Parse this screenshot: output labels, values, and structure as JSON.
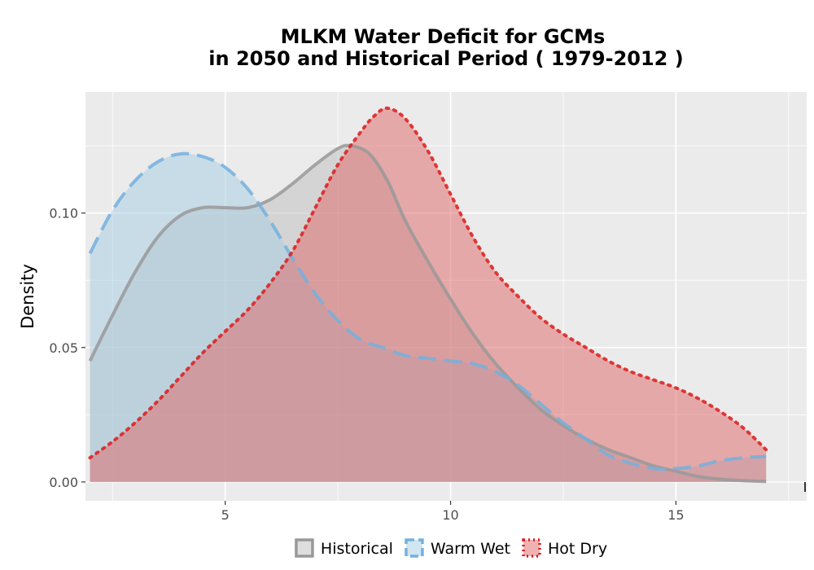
{
  "chart_data": {
    "type": "area",
    "title_lines": [
      "MLKM  Water Deficit for GCMs",
      "in 2050 and Historical Period ( 1979-2012 )"
    ],
    "xlabel": "",
    "ylabel": "Density",
    "xlim": [
      1.9,
      17.9
    ],
    "ylim": [
      -0.007,
      0.145
    ],
    "x_ticks": [
      5,
      10,
      15
    ],
    "x_tick_labels": [
      "5",
      "10",
      "15"
    ],
    "y_ticks": [
      0.0,
      0.05,
      0.1
    ],
    "y_tick_labels": [
      "0.00",
      "0.05",
      "0.10"
    ],
    "grid": true,
    "legend_position": "bottom",
    "series": [
      {
        "name": "Historical",
        "fill": "#bdbdbd",
        "line_color": "#999999",
        "line_style": "solid",
        "x": [
          2.0,
          2.5,
          3.0,
          3.5,
          4.0,
          4.5,
          5.0,
          5.5,
          6.0,
          6.5,
          7.0,
          7.5,
          7.8,
          8.2,
          8.6,
          9.0,
          9.5,
          10.0,
          10.5,
          11.0,
          11.5,
          12.0,
          12.5,
          13.0,
          13.5,
          14.0,
          14.5,
          15.0,
          15.5,
          16.0,
          16.5,
          17.0
        ],
        "values": [
          0.045,
          0.062,
          0.078,
          0.091,
          0.099,
          0.102,
          0.102,
          0.102,
          0.105,
          0.111,
          0.118,
          0.124,
          0.125,
          0.122,
          0.112,
          0.097,
          0.082,
          0.068,
          0.055,
          0.044,
          0.035,
          0.027,
          0.021,
          0.016,
          0.012,
          0.009,
          0.006,
          0.004,
          0.002,
          0.001,
          0.0005,
          0.0002
        ]
      },
      {
        "name": "Warm Wet",
        "fill": "#a6cee3",
        "line_color": "#74b0de",
        "line_style": "dashed",
        "x": [
          2.0,
          2.5,
          3.0,
          3.5,
          4.0,
          4.5,
          5.0,
          5.5,
          6.0,
          6.5,
          7.0,
          7.5,
          8.0,
          8.5,
          9.0,
          9.5,
          10.0,
          10.5,
          11.0,
          11.5,
          12.0,
          12.5,
          13.0,
          13.5,
          14.0,
          14.5,
          15.0,
          15.5,
          16.0,
          16.5,
          17.0
        ],
        "values": [
          0.085,
          0.101,
          0.112,
          0.119,
          0.122,
          0.121,
          0.117,
          0.109,
          0.097,
          0.083,
          0.07,
          0.06,
          0.053,
          0.05,
          0.047,
          0.046,
          0.045,
          0.044,
          0.041,
          0.036,
          0.029,
          0.022,
          0.016,
          0.01,
          0.007,
          0.005,
          0.005,
          0.006,
          0.008,
          0.009,
          0.0095
        ]
      },
      {
        "name": "Hot Dry",
        "fill": "#e06666",
        "line_color": "#dd1c1c",
        "line_style": "dotted",
        "x": [
          2.0,
          2.5,
          3.0,
          3.5,
          4.0,
          4.5,
          5.0,
          5.5,
          6.0,
          6.5,
          7.0,
          7.5,
          8.0,
          8.3,
          8.6,
          9.0,
          9.5,
          10.0,
          10.5,
          11.0,
          11.5,
          12.0,
          12.5,
          13.0,
          13.5,
          14.0,
          14.5,
          15.0,
          15.5,
          16.0,
          16.5,
          17.0
        ],
        "values": [
          0.009,
          0.015,
          0.022,
          0.03,
          0.039,
          0.048,
          0.056,
          0.064,
          0.074,
          0.086,
          0.102,
          0.118,
          0.13,
          0.136,
          0.139,
          0.135,
          0.123,
          0.107,
          0.091,
          0.078,
          0.069,
          0.061,
          0.055,
          0.05,
          0.045,
          0.041,
          0.038,
          0.035,
          0.031,
          0.026,
          0.02,
          0.012
        ]
      }
    ]
  }
}
